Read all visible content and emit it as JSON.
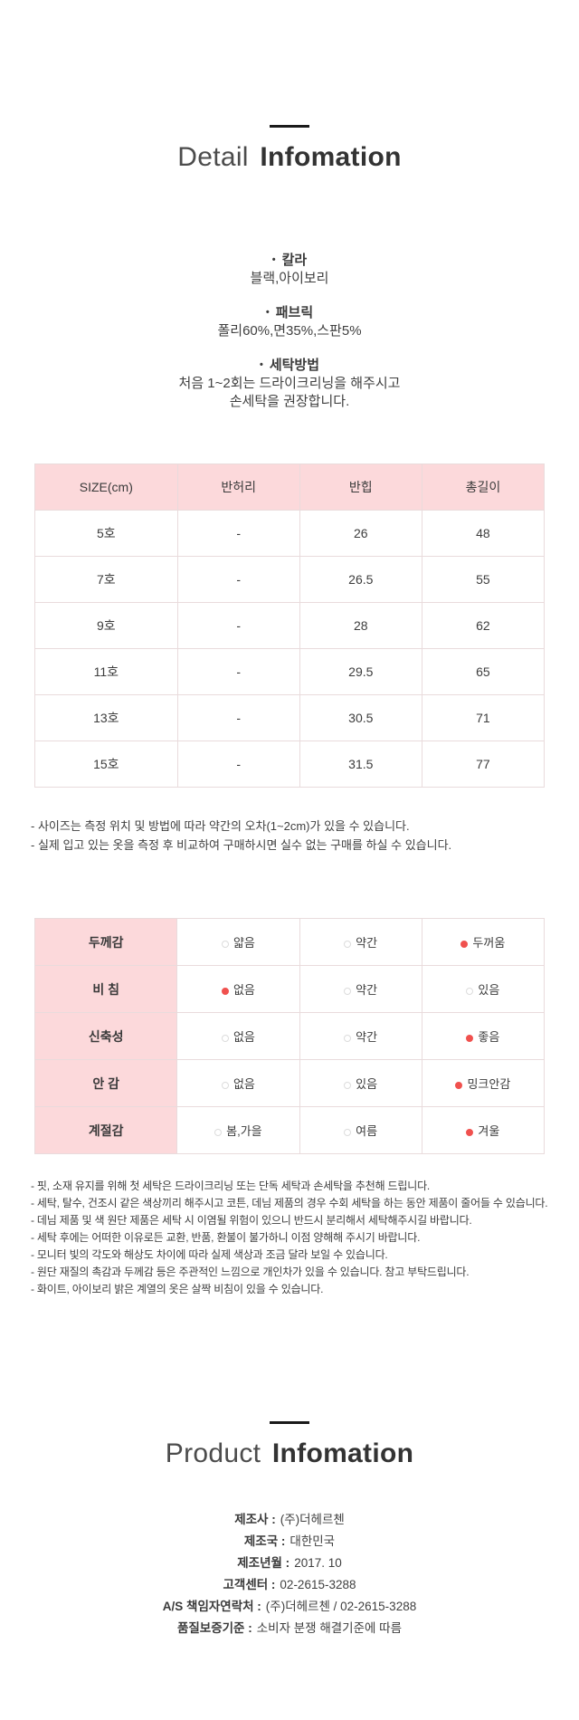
{
  "colors": {
    "header_pink": "#fcd9db",
    "selected_dot_red": "#f0514e",
    "empty_dot_border": "#dcdcdc",
    "table_border": "#e9dbdc",
    "heading_rule": "#1a1a1a",
    "text": "#3d3d3d"
  },
  "bullet": "•",
  "detail_section": {
    "title_light": "Detail",
    "title_bold": "Infomation",
    "specs": [
      {
        "label": "칼라",
        "lines": [
          "블랙,아이보리"
        ]
      },
      {
        "label": "패브릭",
        "lines": [
          "폴리60%,면35%,스판5%"
        ]
      },
      {
        "label": "세탁방법",
        "lines": [
          "처음 1~2회는 드라이크리닝을 해주시고",
          "손세탁을 권장합니다."
        ]
      }
    ]
  },
  "size_table": {
    "headers": [
      "SIZE(cm)",
      "반허리",
      "반힙",
      "총길이"
    ],
    "rows": [
      [
        "5호",
        "-",
        "26",
        "48"
      ],
      [
        "7호",
        "-",
        "26.5",
        "55"
      ],
      [
        "9호",
        "-",
        "28",
        "62"
      ],
      [
        "11호",
        "-",
        "29.5",
        "65"
      ],
      [
        "13호",
        "-",
        "30.5",
        "71"
      ],
      [
        "15호",
        "-",
        "31.5",
        "77"
      ]
    ],
    "notes": [
      "- 사이즈는 측정 위치 및 방법에 따라 약간의 오차(1~2cm)가 있을 수 있습니다.",
      "- 실제 입고 있는 옷을 측정 후 비교하여 구매하시면 실수 없는 구매를 하실 수 있습니다."
    ]
  },
  "feature_table": {
    "rows": [
      {
        "label": "두께감",
        "options": [
          {
            "text": "얇음",
            "selected": false
          },
          {
            "text": "약간",
            "selected": false
          },
          {
            "text": "두꺼움",
            "selected": true
          }
        ]
      },
      {
        "label": "비 침",
        "options": [
          {
            "text": "없음",
            "selected": true
          },
          {
            "text": "약간",
            "selected": false
          },
          {
            "text": "있음",
            "selected": false
          }
        ]
      },
      {
        "label": "신축성",
        "options": [
          {
            "text": "없음",
            "selected": false
          },
          {
            "text": "약간",
            "selected": false
          },
          {
            "text": "좋음",
            "selected": true
          }
        ]
      },
      {
        "label": "안 감",
        "options": [
          {
            "text": "없음",
            "selected": false
          },
          {
            "text": "있음",
            "selected": false
          },
          {
            "text": "밍크안감",
            "selected": true
          }
        ]
      },
      {
        "label": "계절감",
        "options": [
          {
            "text": "봄,가을",
            "selected": false
          },
          {
            "text": "여름",
            "selected": false
          },
          {
            "text": "겨울",
            "selected": true
          }
        ]
      }
    ]
  },
  "care_notes": [
    "- 핏, 소재 유지를 위해 첫 세탁은 드라이크리닝 또는 단독 세탁과 손세탁을 추천해 드립니다.",
    "- 세탁, 탈수, 건조시 같은 색상끼리 해주시고 코튼, 데님 제품의 경우 수회 세탁을 하는 동안 제품이 줄어들 수 있습니다.",
    "- 데님 제품 및 색 원단 제품은 세탁 시 이염될 위험이 있으니 반드시 분리해서 세탁해주시길 바랍니다.",
    "- 세탁 후에는 어떠한 이유로든 교환, 반품, 환불이 불가하니 이점 양해해 주시기 바랍니다.",
    "- 모니터 빛의 각도와 해상도 차이에 따라 실제 색상과 조금 달라 보일 수 있습니다.",
    "- 원단 재질의 촉감과 두께감 등은 주관적인 느낌으로 개인차가 있을 수 있습니다. 참고 부탁드립니다.",
    "- 화이트, 아이보리 밝은 계열의 옷은 살짝 비침이 있을 수 있습니다."
  ],
  "product_section": {
    "title_light": "Product",
    "title_bold": "Infomation",
    "items": [
      {
        "label": "제조사 :",
        "value": "(주)더헤르첸"
      },
      {
        "label": "제조국 :",
        "value": "대한민국"
      },
      {
        "label": "제조년월 :",
        "value": "2017. 10"
      },
      {
        "label": "고객센터 :",
        "value": "02-2615-3288"
      },
      {
        "label": "A/S 책임자연락처 :",
        "value": "(주)더헤르첸 / 02-2615-3288"
      },
      {
        "label": "품질보증기준 :",
        "value": "소비자 분쟁 해결기준에 따름"
      }
    ]
  }
}
